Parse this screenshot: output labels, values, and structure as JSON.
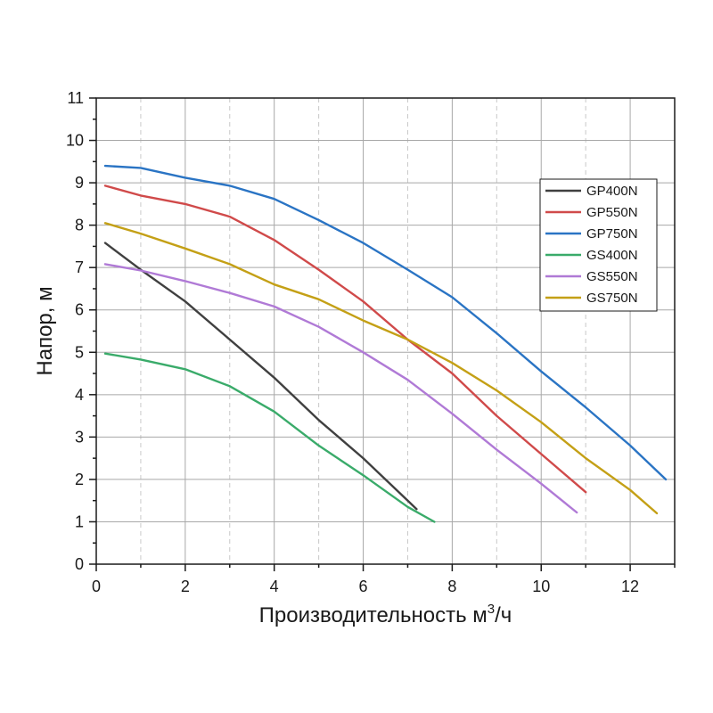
{
  "chart_data": {
    "type": "line",
    "title": "",
    "xlabel": "Производительность м",
    "xlabel_sup": "3",
    "xlabel_tail": "/ч",
    "ylabel": "Напор, м",
    "xlim": [
      0,
      13
    ],
    "ylim": [
      0,
      11
    ],
    "xticks": [
      0,
      2,
      4,
      6,
      8,
      10,
      12
    ],
    "yticks": [
      0,
      1,
      2,
      3,
      4,
      5,
      6,
      7,
      8,
      9,
      10,
      11
    ],
    "grid": true,
    "legend_position": "top-right",
    "series": [
      {
        "name": "GP400N",
        "color": "#404040",
        "x": [
          0.2,
          1,
          2,
          3,
          4,
          5,
          6,
          7,
          7.2
        ],
        "y": [
          7.58,
          6.95,
          6.2,
          5.3,
          4.4,
          3.4,
          2.5,
          1.5,
          1.3
        ]
      },
      {
        "name": "GP550N",
        "color": "#d04a4a",
        "x": [
          0.2,
          1,
          2,
          3,
          4,
          5,
          6,
          7,
          8,
          9,
          10,
          11
        ],
        "y": [
          8.93,
          8.7,
          8.5,
          8.2,
          7.65,
          6.95,
          6.2,
          5.3,
          4.5,
          3.5,
          2.6,
          1.7
        ]
      },
      {
        "name": "GP750N",
        "color": "#2a74c4",
        "x": [
          0.2,
          1,
          2,
          3,
          4,
          5,
          6,
          7,
          8,
          9,
          10,
          11,
          12,
          12.8
        ],
        "y": [
          9.4,
          9.35,
          9.12,
          8.93,
          8.62,
          8.12,
          7.58,
          6.95,
          6.3,
          5.45,
          4.55,
          3.7,
          2.8,
          2.0
        ]
      },
      {
        "name": "GS400N",
        "color": "#3aab6a",
        "x": [
          0.2,
          1,
          2,
          3,
          4,
          5,
          6,
          7,
          7.6
        ],
        "y": [
          4.97,
          4.83,
          4.6,
          4.2,
          3.6,
          2.8,
          2.1,
          1.35,
          1.0
        ]
      },
      {
        "name": "GS550N",
        "color": "#b07ad6",
        "x": [
          0.2,
          1,
          2,
          3,
          4,
          5,
          6,
          7,
          8,
          9,
          10,
          10.8
        ],
        "y": [
          7.08,
          6.93,
          6.68,
          6.4,
          6.08,
          5.6,
          5.0,
          4.35,
          3.55,
          2.7,
          1.9,
          1.22
        ]
      },
      {
        "name": "GS750N",
        "color": "#c4a016",
        "x": [
          0.2,
          1,
          2,
          3,
          4,
          5,
          6,
          7,
          8,
          9,
          10,
          11,
          12,
          12.6
        ],
        "y": [
          8.05,
          7.8,
          7.45,
          7.08,
          6.6,
          6.25,
          5.75,
          5.3,
          4.75,
          4.1,
          3.35,
          2.5,
          1.75,
          1.2
        ]
      }
    ]
  }
}
